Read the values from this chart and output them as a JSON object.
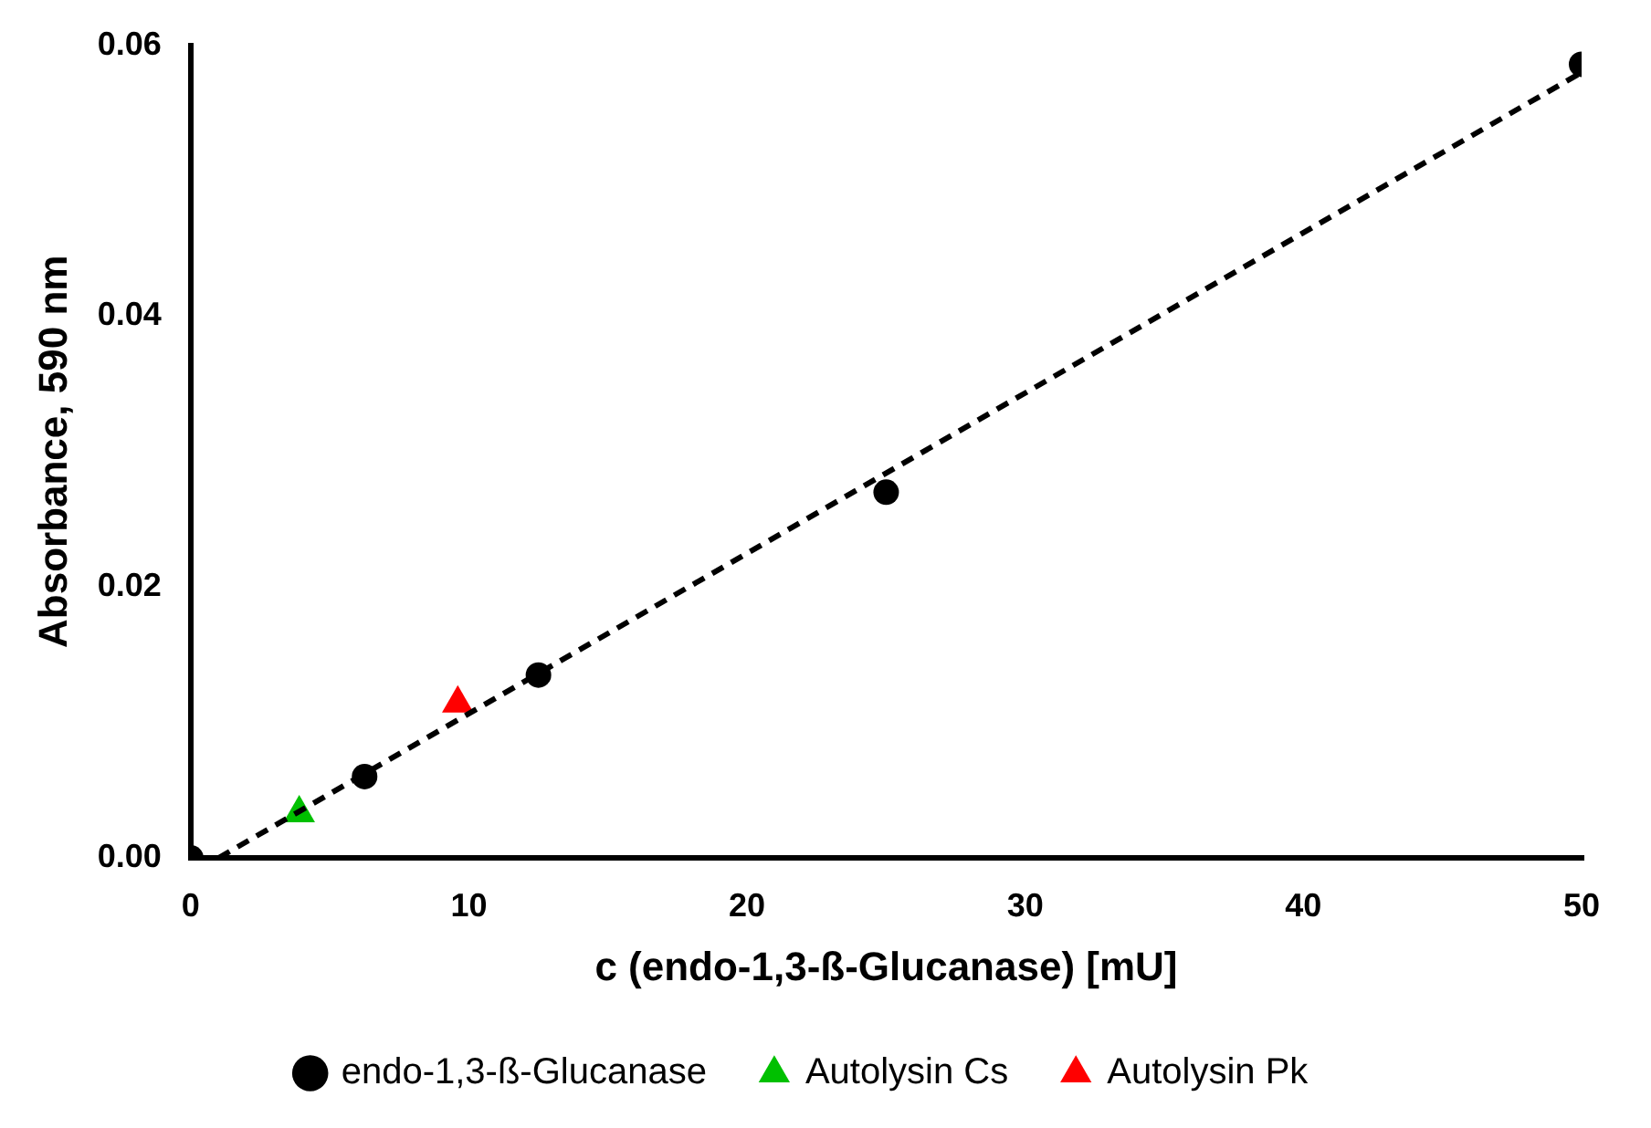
{
  "chart_data": {
    "type": "scatter",
    "xlabel": "c (endo-1,3-ß-Glucanase) [mU]",
    "ylabel": "Absorbance, 590 nm",
    "xlim": [
      0,
      50
    ],
    "xticks": [
      0,
      10,
      20,
      30,
      40,
      50
    ],
    "ylim": [
      0,
      0.06
    ],
    "yticks": [
      {
        "value": 0,
        "label": "0.00"
      },
      0.02,
      0.04,
      0.06
    ],
    "grid": false,
    "legend": "bottom",
    "series": [
      {
        "type": "line",
        "color": "#000000",
        "x": [
          1,
          50
        ],
        "values": [
          0,
          0.058
        ],
        "line_style": "dashed",
        "marker": "none"
      },
      {
        "name": "endo-1,3-ß-Glucanase",
        "color": "#000000",
        "x": [
          0,
          6.25,
          12.5,
          25,
          50
        ],
        "values": [
          0,
          0.006,
          0.0135,
          0.027,
          0.0586
        ],
        "marker": "circle",
        "line_style": "dashed"
      },
      {
        "name": "Autolysin Cs",
        "color": "#00c000",
        "x": [
          3.9
        ],
        "values": [
          0.0033
        ],
        "marker": "triangle"
      },
      {
        "name": "Autolysin Pk",
        "color": "#ff0000",
        "x": [
          9.6
        ],
        "values": [
          0.0114
        ],
        "marker": "triangle"
      }
    ]
  }
}
